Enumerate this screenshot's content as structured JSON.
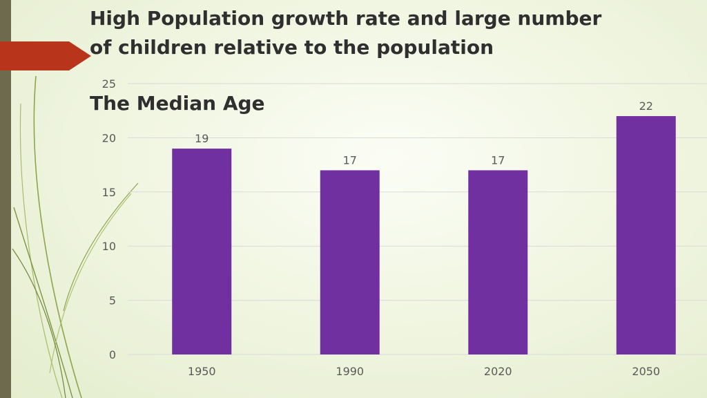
{
  "slide": {
    "title": "High Population growth rate and large number of children relative to the population",
    "accent_color": "#b8341b"
  },
  "chart_data": {
    "type": "bar",
    "title": "The Median Age",
    "categories": [
      "1950",
      "1990",
      "2020",
      "2050"
    ],
    "values": [
      19,
      17,
      17,
      22
    ],
    "data_labels": [
      "19",
      "17",
      "17",
      "22"
    ],
    "yticks": [
      "0",
      "5",
      "10",
      "15",
      "20",
      "25"
    ],
    "ylim": [
      0,
      25
    ],
    "ytick_step": 5,
    "xlabel": "",
    "ylabel": "",
    "grid": true,
    "bar_color": "#7030a0",
    "gridline_color": "#d9d9d9"
  }
}
